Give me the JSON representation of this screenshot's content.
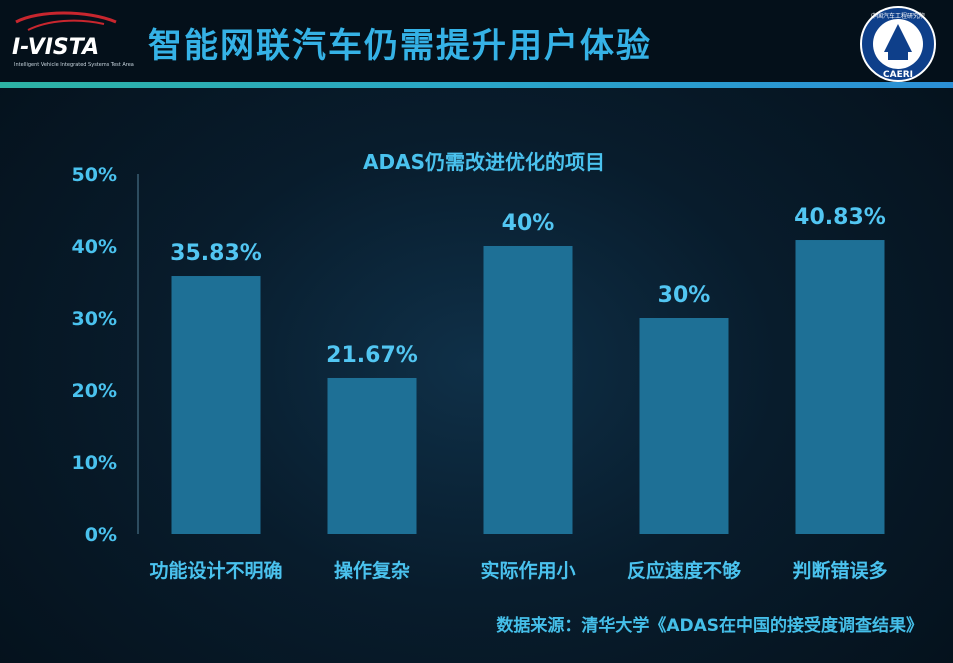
{
  "header": {
    "title": "智能网联汽车仍需提升用户体验",
    "logo_left_text": "I-VISTA",
    "logo_left_subtext": "Intelligent Vehicle Integrated Systems Test Area",
    "logo_right_text": "CAERI",
    "logo_right_arc_text": "中国汽车工程研究院"
  },
  "colors": {
    "accent": "#35b2e6",
    "bar": "#1e7096",
    "background": "#081c2c"
  },
  "chart_data": {
    "type": "bar",
    "title": "ADAS仍需改进优化的项目",
    "categories": [
      "功能设计不明确",
      "操作复杂",
      "实际作用小",
      "反应速度不够",
      "判断错误多"
    ],
    "values": [
      35.83,
      21.67,
      40,
      30,
      40.83
    ],
    "value_labels": [
      "35.83%",
      "21.67%",
      "40%",
      "30%",
      "40.83%"
    ],
    "ylim": [
      0,
      50
    ],
    "yticks": [
      0,
      10,
      20,
      30,
      40,
      50
    ],
    "ytick_labels": [
      "0%",
      "10%",
      "20%",
      "30%",
      "40%",
      "50%"
    ],
    "xlabel": "",
    "ylabel": "",
    "grid": false,
    "legend": "none"
  },
  "source": "数据来源：清华大学《ADAS在中国的接受度调查结果》"
}
